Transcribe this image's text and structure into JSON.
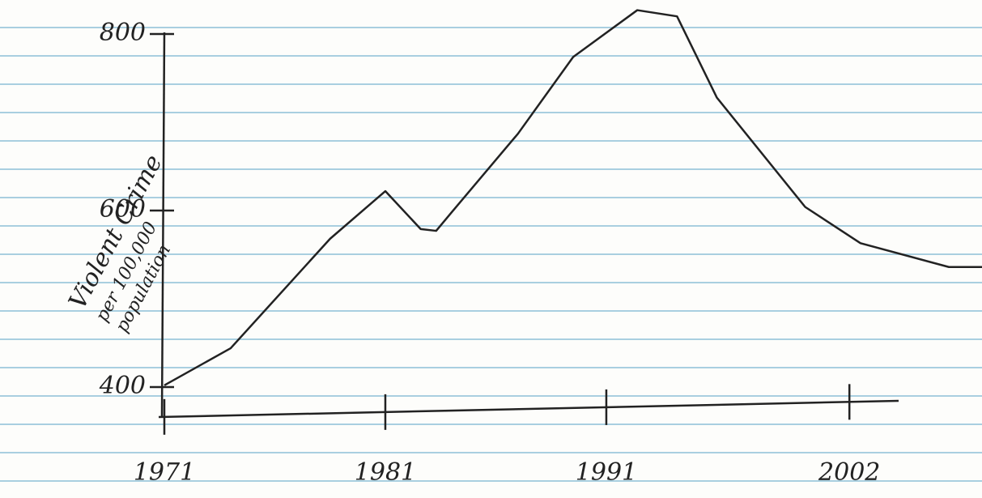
{
  "chart_data": {
    "type": "line",
    "y_label": [
      "Violent Crime",
      "per 100,000",
      "population"
    ],
    "x": [
      1971,
      1974,
      1978.5,
      1981,
      1982.6,
      1983.3,
      1984,
      1987,
      1989.5,
      1992.4,
      1994.2,
      1996,
      2000,
      2002.5,
      2006.5,
      2008
    ],
    "values": [
      402,
      444,
      568,
      622,
      579,
      577,
      598,
      687,
      774,
      827,
      820,
      728,
      604,
      563,
      536,
      536
    ],
    "color": "#222222",
    "xlim": [
      1971,
      2008
    ],
    "xticks": [
      1971,
      1981,
      1991,
      2002
    ],
    "ylim": [
      400,
      800
    ],
    "yticks": [
      400,
      600,
      800
    ]
  }
}
